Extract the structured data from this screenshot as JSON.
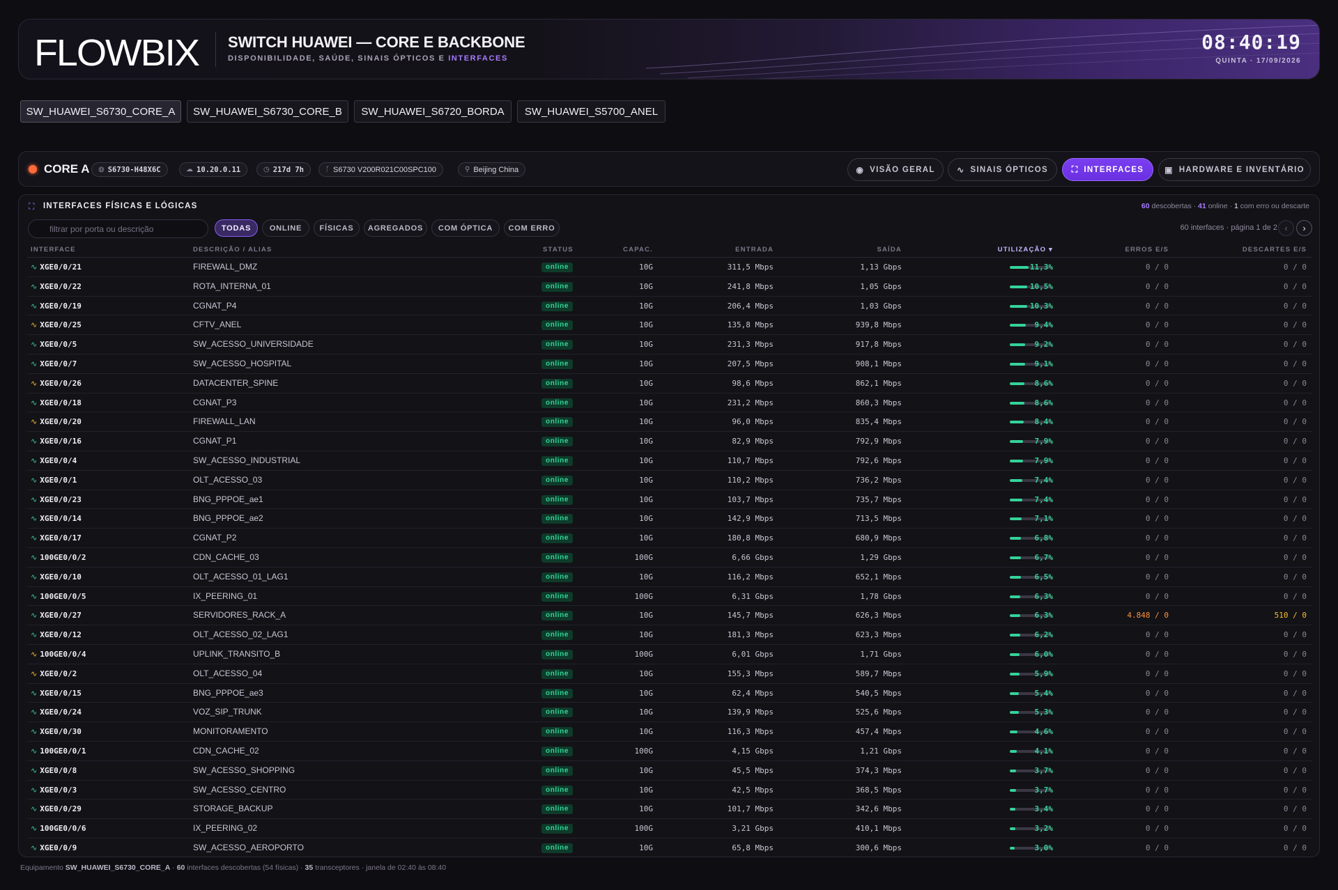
{
  "header": {
    "logo_text": "FLOWBIX",
    "title": "SWITCH HUAWEI — CORE E BACKBONE",
    "subtitle_prefix": "DISPONIBILIDADE, SAÚDE, SINAIS ÓPTICOS E ",
    "subtitle_highlight": "INTERFACES",
    "clock": "08:40:19",
    "date": "QUINTA · 17/09/2026"
  },
  "device_tabs": [
    "SW_HUAWEI_S6730_CORE_A",
    "SW_HUAWEI_S6730_CORE_B",
    "SW_HUAWEI_S6720_BORDA",
    "SW_HUAWEI_S5700_ANEL"
  ],
  "device": {
    "name": "CORE A",
    "model": "S6730-H48X6C",
    "ip": "10.20.0.11",
    "uptime": "217d 7h",
    "firmware": "S6730 V200R021C00SPC100",
    "location": "Beijing China"
  },
  "view_tabs": [
    "VISÃO GERAL",
    "SINAIS ÓPTICOS",
    "INTERFACES",
    "HARDWARE E INVENTÁRIO"
  ],
  "panel": {
    "title": "INTERFACES FÍSICAS E LÓGICAS",
    "summary": {
      "discovered": "60",
      "discovered_label": " descobertas · ",
      "online": "41",
      "online_label": " online · ",
      "errors": "1",
      "errors_label": " com erro ou descarte"
    },
    "search_placeholder": "filtrar por porta ou descrição",
    "filters": [
      "TODAS",
      "ONLINE",
      "FÍSICAS",
      "AGREGADOS",
      "COM ÓPTICA",
      "COM ERRO"
    ],
    "pagination": "60 interfaces · página 1 de 2",
    "columns": {
      "interface": "INTERFACE",
      "description": "DESCRIÇÃO / ALIAS",
      "status": "STATUS",
      "capacity": "CAPAC.",
      "in": "ENTRADA",
      "out": "SAÍDA",
      "utilization": "UTILIZAÇÃO ▾",
      "errors": "ERROS E/S",
      "discards": "DESCARTES E/S"
    }
  },
  "rows": [
    {
      "if": "XGE0/0/21",
      "desc": "FIREWALL_DMZ",
      "status": "online",
      "cap": "10G",
      "in": "311,5 Mbps",
      "out": "1,13 Gbps",
      "util": "11,3%",
      "u": 11.3,
      "err": "0 / 0",
      "disc": "0 / 0",
      "icon_color": "#34d399"
    },
    {
      "if": "XGE0/0/22",
      "desc": "ROTA_INTERNA_01",
      "status": "online",
      "cap": "10G",
      "in": "241,8 Mbps",
      "out": "1,05 Gbps",
      "util": "10,5%",
      "u": 10.5,
      "err": "0 / 0",
      "disc": "0 / 0",
      "icon_color": "#34d399"
    },
    {
      "if": "XGE0/0/19",
      "desc": "CGNAT_P4",
      "status": "online",
      "cap": "10G",
      "in": "206,4 Mbps",
      "out": "1,03 Gbps",
      "util": "10,3%",
      "u": 10.3,
      "err": "0 / 0",
      "disc": "0 / 0",
      "icon_color": "#34d399"
    },
    {
      "if": "XGE0/0/25",
      "desc": "CFTV_ANEL",
      "status": "online",
      "cap": "10G",
      "in": "135,8 Mbps",
      "out": "939,8 Mbps",
      "util": "9,4%",
      "u": 9.4,
      "err": "0 / 0",
      "disc": "0 / 0",
      "icon_color": "#fbbf24"
    },
    {
      "if": "XGE0/0/5",
      "desc": "SW_ACESSO_UNIVERSIDADE",
      "status": "online",
      "cap": "10G",
      "in": "231,3 Mbps",
      "out": "917,8 Mbps",
      "util": "9,2%",
      "u": 9.2,
      "err": "0 / 0",
      "disc": "0 / 0",
      "icon_color": "#34d399"
    },
    {
      "if": "XGE0/0/7",
      "desc": "SW_ACESSO_HOSPITAL",
      "status": "online",
      "cap": "10G",
      "in": "207,5 Mbps",
      "out": "908,1 Mbps",
      "util": "9,1%",
      "u": 9.1,
      "err": "0 / 0",
      "disc": "0 / 0",
      "icon_color": "#34d399"
    },
    {
      "if": "XGE0/0/26",
      "desc": "DATACENTER_SPINE",
      "status": "online",
      "cap": "10G",
      "in": "98,6 Mbps",
      "out": "862,1 Mbps",
      "util": "8,6%",
      "u": 8.6,
      "err": "0 / 0",
      "disc": "0 / 0",
      "icon_color": "#fbbf24"
    },
    {
      "if": "XGE0/0/18",
      "desc": "CGNAT_P3",
      "status": "online",
      "cap": "10G",
      "in": "231,2 Mbps",
      "out": "860,3 Mbps",
      "util": "8,6%",
      "u": 8.6,
      "err": "0 / 0",
      "disc": "0 / 0",
      "icon_color": "#34d399"
    },
    {
      "if": "XGE0/0/20",
      "desc": "FIREWALL_LAN",
      "status": "online",
      "cap": "10G",
      "in": "96,0 Mbps",
      "out": "835,4 Mbps",
      "util": "8,4%",
      "u": 8.4,
      "err": "0 / 0",
      "disc": "0 / 0",
      "icon_color": "#fbbf24"
    },
    {
      "if": "XGE0/0/16",
      "desc": "CGNAT_P1",
      "status": "online",
      "cap": "10G",
      "in": "82,9 Mbps",
      "out": "792,9 Mbps",
      "util": "7,9%",
      "u": 7.9,
      "err": "0 / 0",
      "disc": "0 / 0",
      "icon_color": "#34d399"
    },
    {
      "if": "XGE0/0/4",
      "desc": "SW_ACESSO_INDUSTRIAL",
      "status": "online",
      "cap": "10G",
      "in": "110,7 Mbps",
      "out": "792,6 Mbps",
      "util": "7,9%",
      "u": 7.9,
      "err": "0 / 0",
      "disc": "0 / 0",
      "icon_color": "#34d399"
    },
    {
      "if": "XGE0/0/1",
      "desc": "OLT_ACESSO_03",
      "status": "online",
      "cap": "10G",
      "in": "110,2 Mbps",
      "out": "736,2 Mbps",
      "util": "7,4%",
      "u": 7.4,
      "err": "0 / 0",
      "disc": "0 / 0",
      "icon_color": "#34d399"
    },
    {
      "if": "XGE0/0/23",
      "desc": "BNG_PPPOE_ae1",
      "status": "online",
      "cap": "10G",
      "in": "103,7 Mbps",
      "out": "735,7 Mbps",
      "util": "7,4%",
      "u": 7.4,
      "err": "0 / 0",
      "disc": "0 / 0",
      "icon_color": "#34d399"
    },
    {
      "if": "XGE0/0/14",
      "desc": "BNG_PPPOE_ae2",
      "status": "online",
      "cap": "10G",
      "in": "142,9 Mbps",
      "out": "713,5 Mbps",
      "util": "7,1%",
      "u": 7.1,
      "err": "0 / 0",
      "disc": "0 / 0",
      "icon_color": "#34d399"
    },
    {
      "if": "XGE0/0/17",
      "desc": "CGNAT_P2",
      "status": "online",
      "cap": "10G",
      "in": "180,8 Mbps",
      "out": "680,9 Mbps",
      "util": "6,8%",
      "u": 6.8,
      "err": "0 / 0",
      "disc": "0 / 0",
      "icon_color": "#34d399"
    },
    {
      "if": "100GE0/0/2",
      "desc": "CDN_CACHE_03",
      "status": "online",
      "cap": "100G",
      "in": "6,66 Gbps",
      "out": "1,29 Gbps",
      "util": "6,7%",
      "u": 6.7,
      "err": "0 / 0",
      "disc": "0 / 0",
      "icon_color": "#34d399"
    },
    {
      "if": "XGE0/0/10",
      "desc": "OLT_ACESSO_01_LAG1",
      "status": "online",
      "cap": "10G",
      "in": "116,2 Mbps",
      "out": "652,1 Mbps",
      "util": "6,5%",
      "u": 6.5,
      "err": "0 / 0",
      "disc": "0 / 0",
      "icon_color": "#34d399"
    },
    {
      "if": "100GE0/0/5",
      "desc": "IX_PEERING_01",
      "status": "online",
      "cap": "100G",
      "in": "6,31 Gbps",
      "out": "1,78 Gbps",
      "util": "6,3%",
      "u": 6.3,
      "err": "0 / 0",
      "disc": "0 / 0",
      "icon_color": "#34d399"
    },
    {
      "if": "XGE0/0/27",
      "desc": "SERVIDORES_RACK_A",
      "status": "online",
      "cap": "10G",
      "in": "145,7 Mbps",
      "out": "626,3 Mbps",
      "util": "6,3%",
      "u": 6.3,
      "err": "4.848 / 0",
      "disc": "510 / 0",
      "icon_color": "#34d399",
      "bad": true
    },
    {
      "if": "XGE0/0/12",
      "desc": "OLT_ACESSO_02_LAG1",
      "status": "online",
      "cap": "10G",
      "in": "181,3 Mbps",
      "out": "623,3 Mbps",
      "util": "6,2%",
      "u": 6.2,
      "err": "0 / 0",
      "disc": "0 / 0",
      "icon_color": "#34d399"
    },
    {
      "if": "100GE0/0/4",
      "desc": "UPLINK_TRANSITO_B",
      "status": "online",
      "cap": "100G",
      "in": "6,01 Gbps",
      "out": "1,71 Gbps",
      "util": "6,0%",
      "u": 6.0,
      "err": "0 / 0",
      "disc": "0 / 0",
      "icon_color": "#fbbf24"
    },
    {
      "if": "XGE0/0/2",
      "desc": "OLT_ACESSO_04",
      "status": "online",
      "cap": "10G",
      "in": "155,3 Mbps",
      "out": "589,7 Mbps",
      "util": "5,9%",
      "u": 5.9,
      "err": "0 / 0",
      "disc": "0 / 0",
      "icon_color": "#fbbf24"
    },
    {
      "if": "XGE0/0/15",
      "desc": "BNG_PPPOE_ae3",
      "status": "online",
      "cap": "10G",
      "in": "62,4 Mbps",
      "out": "540,5 Mbps",
      "util": "5,4%",
      "u": 5.4,
      "err": "0 / 0",
      "disc": "0 / 0",
      "icon_color": "#34d399"
    },
    {
      "if": "XGE0/0/24",
      "desc": "VOZ_SIP_TRUNK",
      "status": "online",
      "cap": "10G",
      "in": "139,9 Mbps",
      "out": "525,6 Mbps",
      "util": "5,3%",
      "u": 5.3,
      "err": "0 / 0",
      "disc": "0 / 0",
      "icon_color": "#34d399"
    },
    {
      "if": "XGE0/0/30",
      "desc": "MONITORAMENTO",
      "status": "online",
      "cap": "10G",
      "in": "116,3 Mbps",
      "out": "457,4 Mbps",
      "util": "4,6%",
      "u": 4.6,
      "err": "0 / 0",
      "disc": "0 / 0",
      "icon_color": "#34d399"
    },
    {
      "if": "100GE0/0/1",
      "desc": "CDN_CACHE_02",
      "status": "online",
      "cap": "100G",
      "in": "4,15 Gbps",
      "out": "1,21 Gbps",
      "util": "4,1%",
      "u": 4.1,
      "err": "0 / 0",
      "disc": "0 / 0",
      "icon_color": "#34d399"
    },
    {
      "if": "XGE0/0/8",
      "desc": "SW_ACESSO_SHOPPING",
      "status": "online",
      "cap": "10G",
      "in": "45,5 Mbps",
      "out": "374,3 Mbps",
      "util": "3,7%",
      "u": 3.7,
      "err": "0 / 0",
      "disc": "0 / 0",
      "icon_color": "#34d399"
    },
    {
      "if": "XGE0/0/3",
      "desc": "SW_ACESSO_CENTRO",
      "status": "online",
      "cap": "10G",
      "in": "42,5 Mbps",
      "out": "368,5 Mbps",
      "util": "3,7%",
      "u": 3.7,
      "err": "0 / 0",
      "disc": "0 / 0",
      "icon_color": "#34d399"
    },
    {
      "if": "XGE0/0/29",
      "desc": "STORAGE_BACKUP",
      "status": "online",
      "cap": "10G",
      "in": "101,7 Mbps",
      "out": "342,6 Mbps",
      "util": "3,4%",
      "u": 3.4,
      "err": "0 / 0",
      "disc": "0 / 0",
      "icon_color": "#34d399"
    },
    {
      "if": "100GE0/0/6",
      "desc": "IX_PEERING_02",
      "status": "online",
      "cap": "100G",
      "in": "3,21 Gbps",
      "out": "410,1 Mbps",
      "util": "3,2%",
      "u": 3.2,
      "err": "0 / 0",
      "disc": "0 / 0",
      "icon_color": "#34d399"
    },
    {
      "if": "XGE0/0/9",
      "desc": "SW_ACESSO_AEROPORTO",
      "status": "online",
      "cap": "10G",
      "in": "65,8 Mbps",
      "out": "300,6 Mbps",
      "util": "3,0%",
      "u": 3.0,
      "err": "0 / 0",
      "disc": "0 / 0",
      "icon_color": "#34d399"
    }
  ],
  "footer": {
    "prefix": "Equipamento ",
    "device": "SW_HUAWEI_S6730_CORE_A",
    "sep1": " · ",
    "count": "60",
    "count_label": " interfaces descobertas (54 físicas) · ",
    "transceivers": "35",
    "transceivers_label": " transceptores · janela de 02:40 às 08:40"
  },
  "colors": {
    "accent": "#8b5cf6",
    "online": "#34d399",
    "warning": "#fbbf24",
    "error": "#fb923c",
    "status_dot": "#ff6a3a"
  }
}
